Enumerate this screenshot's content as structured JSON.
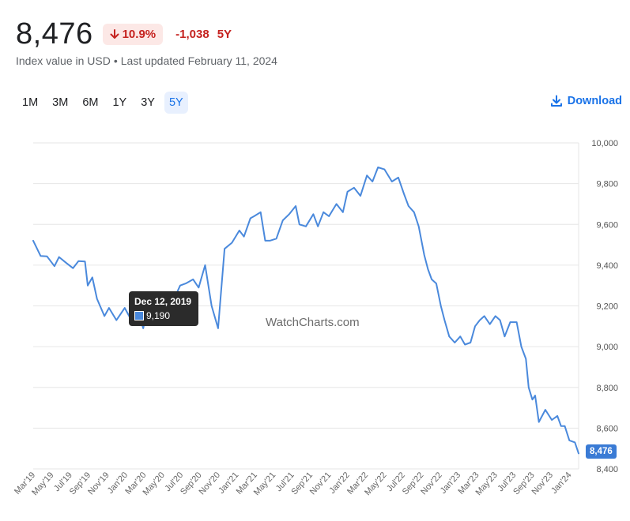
{
  "header": {
    "value": "8,476",
    "change_pct": "10.9%",
    "change_abs": "-1,038",
    "period": "5Y",
    "subtitle_left": "Index value in USD",
    "subtitle_sep": "•",
    "subtitle_right": "Last updated February 11, 2024"
  },
  "ranges": [
    "1M",
    "3M",
    "6M",
    "1Y",
    "3Y",
    "5Y"
  ],
  "active_range": "5Y",
  "download_label": "Download",
  "tooltip": {
    "date": "Dec 12, 2019",
    "value": "9,190"
  },
  "watermark": "WatchCharts.com",
  "current_badge": "8,476",
  "colors": {
    "line": "#4a89dc",
    "negative": "#c5221f",
    "accent": "#1a73e8",
    "badge": "#3a7bd5"
  },
  "chart_data": {
    "type": "line",
    "ylim": [
      8400,
      10000
    ],
    "yticks": [
      "10,000",
      "9,800",
      "9,600",
      "9,400",
      "9,200",
      "9,000",
      "8,800",
      "8,600",
      "8,400"
    ],
    "ytick_values": [
      10000,
      9800,
      9600,
      9400,
      9200,
      9000,
      8800,
      8600,
      8400
    ],
    "xticks": [
      "Mar'19",
      "May'19",
      "Jul'19",
      "Sep'19",
      "Nov'19",
      "Jan'20",
      "Mar'20",
      "May'20",
      "Jul'20",
      "Sep'20",
      "Nov'20",
      "Jan'21",
      "Mar'21",
      "May'21",
      "Jul'21",
      "Sep'21",
      "Nov'21",
      "Jan'22",
      "Mar'22",
      "May'22",
      "Jul'22",
      "Sep'22",
      "Nov'22",
      "Jan'23",
      "Mar'23",
      "May'23",
      "Jul'23",
      "Sep'23",
      "Nov'23",
      "Jan'24"
    ],
    "xlim": [
      0,
      59
    ],
    "grid": "horizontal",
    "series": [
      {
        "x": [
          0,
          0.8,
          1.5,
          2.3,
          2.8,
          3.6,
          4.3,
          4.9,
          5.6,
          5.9,
          6.4,
          6.9,
          7.7,
          8.2,
          9.0,
          9.9,
          10.5,
          11.2,
          11.9,
          12.2,
          12.6,
          13.1,
          13.7,
          14.3,
          15.1,
          15.9,
          16.5,
          17.3,
          17.9,
          18.6,
          19.3,
          20.0,
          20.7,
          21.5,
          22.3,
          22.8,
          23.5,
          23.9,
          24.6,
          25.1,
          25.6,
          26.3,
          27.0,
          27.7,
          28.4,
          28.8,
          29.5,
          30.3,
          30.8,
          31.4,
          32.0,
          32.8,
          33.5,
          34.0,
          34.7,
          35.4,
          36.1,
          36.7,
          37.3,
          38.0,
          38.8,
          39.5,
          40.1,
          40.6,
          41.2,
          41.7,
          42.3,
          42.7,
          43.1,
          43.6,
          44.1,
          44.5,
          45.0,
          45.6,
          46.2,
          46.7,
          47.3,
          47.8,
          48.3,
          48.8,
          49.4,
          50.0,
          50.5,
          51.0,
          51.6,
          52.3,
          52.8,
          53.3,
          53.6,
          54.0,
          54.3,
          54.7,
          55.4,
          56.1,
          56.7,
          57.1,
          57.5,
          58.0,
          58.6,
          59.0
        ],
        "y": [
          9520,
          9445,
          9443,
          9395,
          9440,
          9410,
          9385,
          9420,
          9418,
          9300,
          9340,
          9235,
          9150,
          9190,
          9130,
          9190,
          9140,
          9190,
          9090,
          9150,
          9170,
          9140,
          9210,
          9185,
          9220,
          9300,
          9310,
          9330,
          9290,
          9400,
          9200,
          9090,
          9480,
          9510,
          9570,
          9540,
          9630,
          9640,
          9660,
          9520,
          9520,
          9530,
          9620,
          9650,
          9690,
          9600,
          9590,
          9650,
          9590,
          9660,
          9640,
          9700,
          9660,
          9760,
          9780,
          9740,
          9840,
          9810,
          9880,
          9870,
          9810,
          9830,
          9750,
          9690,
          9660,
          9590,
          9450,
          9380,
          9330,
          9310,
          9200,
          9130,
          9050,
          9020,
          9050,
          9010,
          9020,
          9100,
          9130,
          9150,
          9110,
          9150,
          9130,
          9050,
          9120,
          9120,
          9000,
          8940,
          8800,
          8740,
          8760,
          8630,
          8690,
          8640,
          8660,
          8610,
          8610,
          8540,
          8530,
          8476
        ]
      }
    ]
  }
}
